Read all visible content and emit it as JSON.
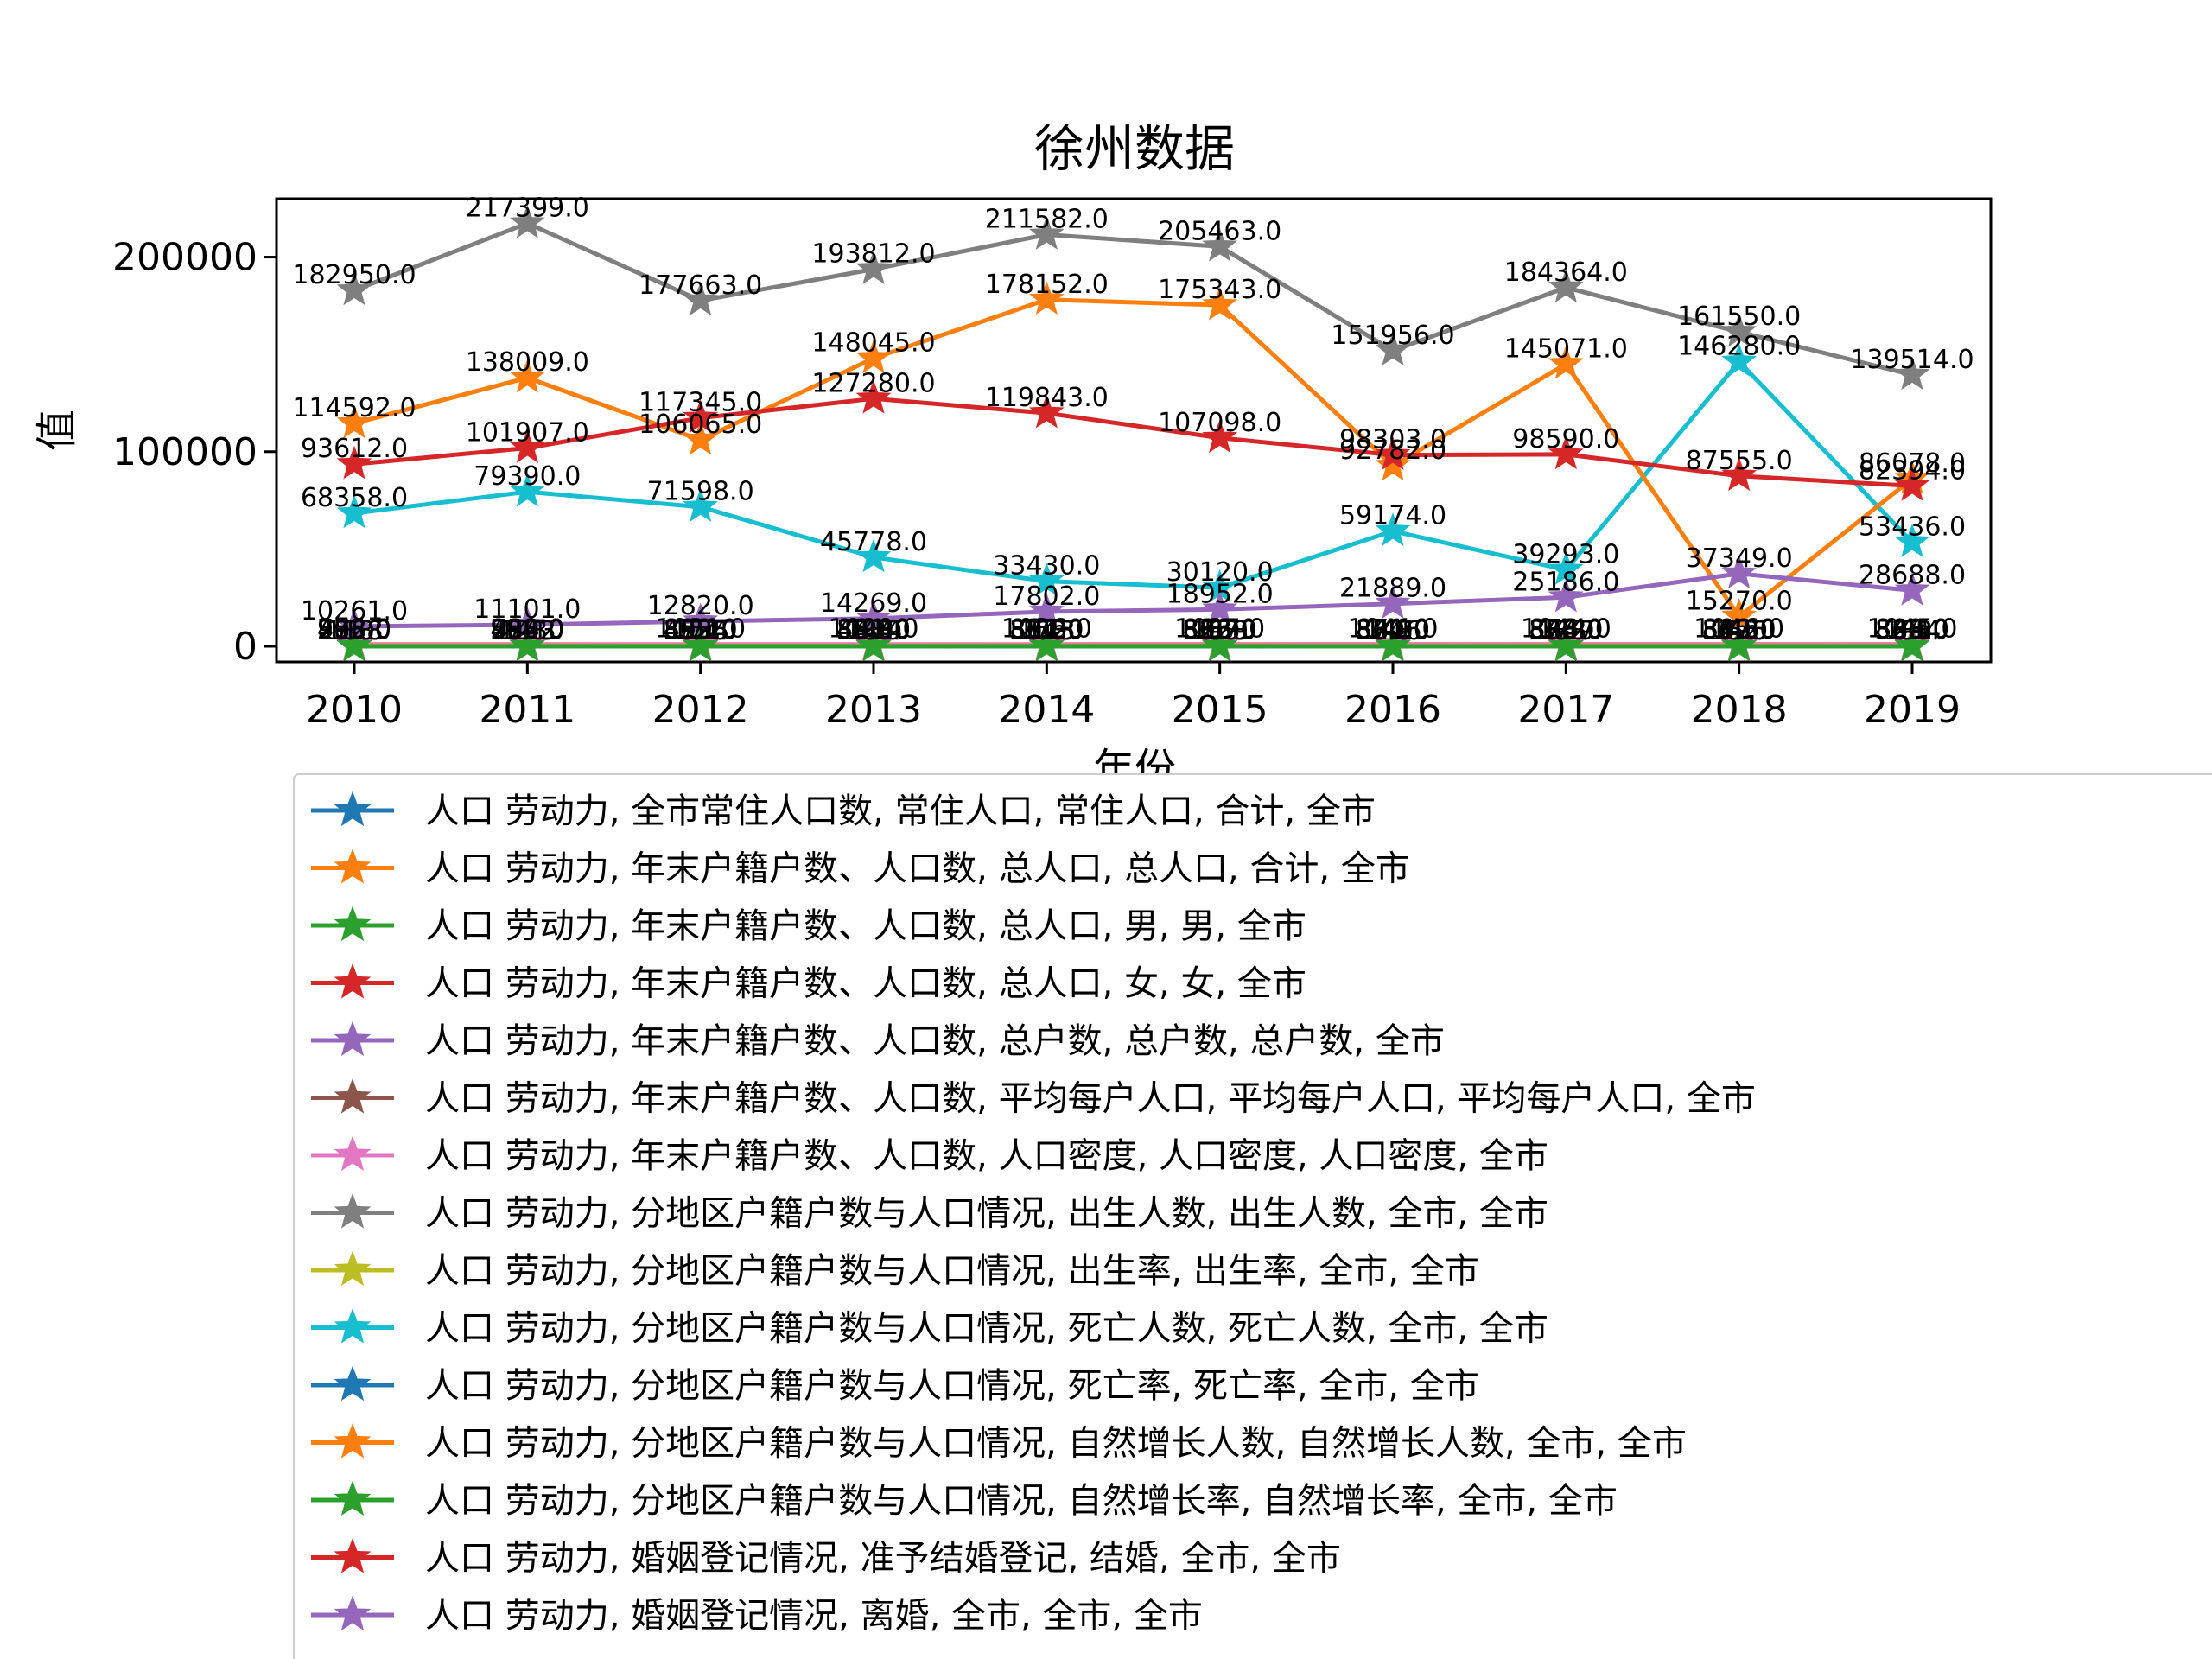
{
  "chart_data": {
    "type": "line",
    "title": "徐州数据",
    "xlabel": "年份",
    "ylabel": "值",
    "x": [
      2010,
      2011,
      2012,
      2013,
      2014,
      2015,
      2016,
      2017,
      2018,
      2019
    ],
    "ylim": [
      -8000,
      230000
    ],
    "y_ticks": [
      0,
      100000,
      200000
    ],
    "marker": "star",
    "grid": false,
    "legend_position": "below plot",
    "series": [
      {
        "name": "人口 劳动力, 全市常住人口数, 常住人口, 常住人口, 合计, 全市",
        "color": "#1f77b4",
        "values": [
          858,
          858,
          859,
          860,
          861,
          866,
          871,
          876,
          880,
          883
        ]
      },
      {
        "name": "人口 劳动力, 年末户籍户数、人口数, 总人口, 总人口, 合计, 全市",
        "color": "#ff7f0e",
        "values": [
          975,
          980,
          1031,
          1029,
          1036,
          1037,
          1041,
          1044,
          1046,
          1045
        ]
      },
      {
        "name": "人口 劳动力, 年末户籍户数、人口数, 总人口, 男, 男, 全市",
        "color": "#2ca02c",
        "values": [
          503,
          506,
          532,
          531,
          534,
          535,
          537,
          538,
          539,
          539
        ]
      },
      {
        "name": "人口 劳动力, 年末户籍户数、人口数, 总人口, 女, 女, 全市",
        "color": "#d62728",
        "values": [
          472,
          474,
          499,
          498,
          502,
          502,
          504,
          506,
          507,
          506
        ]
      },
      {
        "name": "人口 劳动力, 年末户籍户数、人口数, 总户数, 总户数, 总户数, 全市",
        "color": "#9467bd",
        "values": [
          296,
          299,
          305,
          307,
          311,
          315,
          320,
          324,
          327,
          328
        ]
      },
      {
        "name": "人口 劳动力, 年末户籍户数、人口数, 平均每户人口, 平均每户人口, 平均每户人口, 全市",
        "color": "#8c564b",
        "values": [
          3.29,
          3.28,
          3.38,
          3.35,
          3.33,
          3.29,
          3.25,
          3.22,
          3.2,
          3.19
        ]
      },
      {
        "name": "人口 劳动力, 年末户籍户数、人口数, 人口密度, 人口密度, 人口密度, 全市",
        "color": "#e377c2",
        "values": [
          788,
          792,
          833,
          831,
          837,
          838,
          841,
          843,
          845,
          844
        ]
      },
      {
        "name": "人口 劳动力, 分地区户籍户数与人口情况, 出生人数, 出生人数, 全市, 全市",
        "color": "#7f7f7f",
        "values": [
          182950,
          217399,
          177663,
          193812,
          211582,
          205463,
          151956,
          184364,
          161550,
          139514
        ]
      },
      {
        "name": "人口 劳动力, 分地区户籍户数与人口情况, 出生率, 出生率, 全市, 全市",
        "color": "#bcbd22",
        "values": [
          18.8,
          22.3,
          17.5,
          18.9,
          20.5,
          19.8,
          14.6,
          17.7,
          15.5,
          13.4
        ]
      },
      {
        "name": "人口 劳动力, 分地区户籍户数与人口情况, 死亡人数, 死亡人数, 全市, 全市",
        "color": "#17becf",
        "values": [
          68358,
          79390,
          71598,
          45778,
          33430,
          30120,
          59174,
          39293,
          146280,
          53436
        ]
      },
      {
        "name": "人口 劳动力, 分地区户籍户数与人口情况, 死亡率, 死亡率, 全市, 全市",
        "color": "#1f77b4",
        "values": [
          7.0,
          8.1,
          7.1,
          4.5,
          3.2,
          2.9,
          5.7,
          3.8,
          14.0,
          5.1
        ]
      },
      {
        "name": "人口 劳动力, 分地区户籍户数与人口情况, 自然增长人数, 自然增长人数, 全市, 全市",
        "color": "#ff7f0e",
        "values": [
          114592,
          138009,
          106065,
          148045,
          178152,
          175343,
          92782,
          145071,
          15270,
          86078
        ]
      },
      {
        "name": "人口 劳动力, 分地区户籍户数与人口情况, 自然增长率, 自然增长率, 全市, 全市",
        "color": "#2ca02c",
        "values": [
          11.8,
          14.2,
          10.4,
          14.4,
          17.3,
          16.9,
          8.9,
          13.9,
          1.5,
          8.3
        ]
      },
      {
        "name": "人口 劳动力, 婚姻登记情况, 准予结婚登记, 结婚, 全市, 全市",
        "color": "#d62728",
        "values": [
          93612,
          101907,
          117345,
          127280,
          119843,
          107098,
          98303,
          98590,
          87555,
          82394
        ]
      },
      {
        "name": "人口 劳动力, 婚姻登记情况, 离婚, 全市, 全市, 全市",
        "color": "#9467bd",
        "values": [
          10261,
          11101,
          12820,
          14269,
          17802,
          18952,
          21889,
          25186,
          37349,
          28688
        ]
      }
    ]
  }
}
